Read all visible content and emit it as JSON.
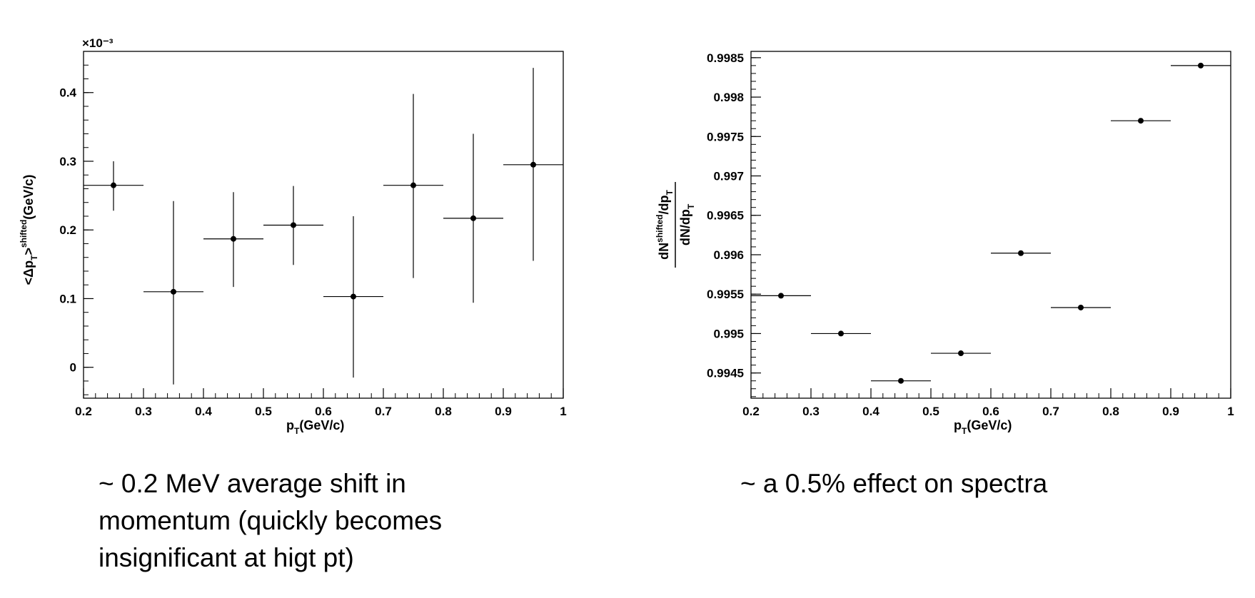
{
  "chart_data": [
    {
      "type": "scatter",
      "title": "",
      "xlabel": "p_T(GeV/c)",
      "ylabel": "<Δp_T>^shifted (GeV/c)",
      "y_multiplier_label": "×10⁻³",
      "xlim": [
        0.2,
        1.0
      ],
      "ylim": [
        -0.045,
        0.46
      ],
      "xticks": [
        "0.2",
        "0.3",
        "0.4",
        "0.5",
        "0.6",
        "0.7",
        "0.8",
        "0.9",
        "1"
      ],
      "yticks": [
        "0",
        "0.1",
        "0.2",
        "0.3",
        "0.4"
      ],
      "grid": false,
      "points": [
        {
          "x": 0.25,
          "y": 0.265,
          "xerr": 0.05,
          "yerr_low": 0.037,
          "yerr_high": 0.035
        },
        {
          "x": 0.35,
          "y": 0.11,
          "xerr": 0.05,
          "yerr_low": 0.135,
          "yerr_high": 0.132
        },
        {
          "x": 0.45,
          "y": 0.187,
          "xerr": 0.05,
          "yerr_low": 0.07,
          "yerr_high": 0.068
        },
        {
          "x": 0.55,
          "y": 0.207,
          "xerr": 0.05,
          "yerr_low": 0.058,
          "yerr_high": 0.057
        },
        {
          "x": 0.65,
          "y": 0.103,
          "xerr": 0.05,
          "yerr_low": 0.118,
          "yerr_high": 0.117
        },
        {
          "x": 0.75,
          "y": 0.265,
          "xerr": 0.05,
          "yerr_low": 0.135,
          "yerr_high": 0.133
        },
        {
          "x": 0.85,
          "y": 0.217,
          "xerr": 0.05,
          "yerr_low": 0.123,
          "yerr_high": 0.123
        },
        {
          "x": 0.95,
          "y": 0.295,
          "xerr": 0.05,
          "yerr_low": 0.14,
          "yerr_high": 0.141
        }
      ]
    },
    {
      "type": "scatter",
      "title": "",
      "xlabel": "p_T(GeV/c)",
      "ylabel": "(dN^shifted/dp_T) / (dN/dp_T)",
      "xlim": [
        0.2,
        1.0
      ],
      "ylim": [
        0.99418,
        0.99858
      ],
      "xticks": [
        "0.2",
        "0.3",
        "0.4",
        "0.5",
        "0.6",
        "0.7",
        "0.8",
        "0.9",
        "1"
      ],
      "yticks": [
        "0.9945",
        "0.995",
        "0.9955",
        "0.996",
        "0.9965",
        "0.997",
        "0.9975",
        "0.998",
        "0.9985"
      ],
      "grid": false,
      "points": [
        {
          "x": 0.25,
          "y": 0.99548,
          "xerr": 0.05
        },
        {
          "x": 0.35,
          "y": 0.995,
          "xerr": 0.05
        },
        {
          "x": 0.45,
          "y": 0.9944,
          "xerr": 0.05
        },
        {
          "x": 0.55,
          "y": 0.99475,
          "xerr": 0.05
        },
        {
          "x": 0.65,
          "y": 0.99602,
          "xerr": 0.05
        },
        {
          "x": 0.75,
          "y": 0.99533,
          "xerr": 0.05
        },
        {
          "x": 0.85,
          "y": 0.9977,
          "xerr": 0.05
        },
        {
          "x": 0.95,
          "y": 0.9984,
          "xerr": 0.05
        }
      ]
    }
  ],
  "captions": {
    "left": [
      "~ 0.2 MeV average shift in",
      "momentum (quickly becomes",
      "insignificant at higt pt)"
    ],
    "right": [
      "~ a 0.5% effect on spectra"
    ]
  },
  "labels": {
    "p": "p",
    "T": "T",
    "gevc_x": "(GeV/c)",
    "left_y_lt_delta_p": "<Δp",
    "left_y_gt": ">",
    "left_y_shifted": "shifted",
    "left_y_unit": "(GeV/c)",
    "right_y_num_dN": "dN",
    "right_y_num_shifted": "shifted",
    "right_y_num_dp": "/dp",
    "right_y_den": "dN/dp"
  }
}
